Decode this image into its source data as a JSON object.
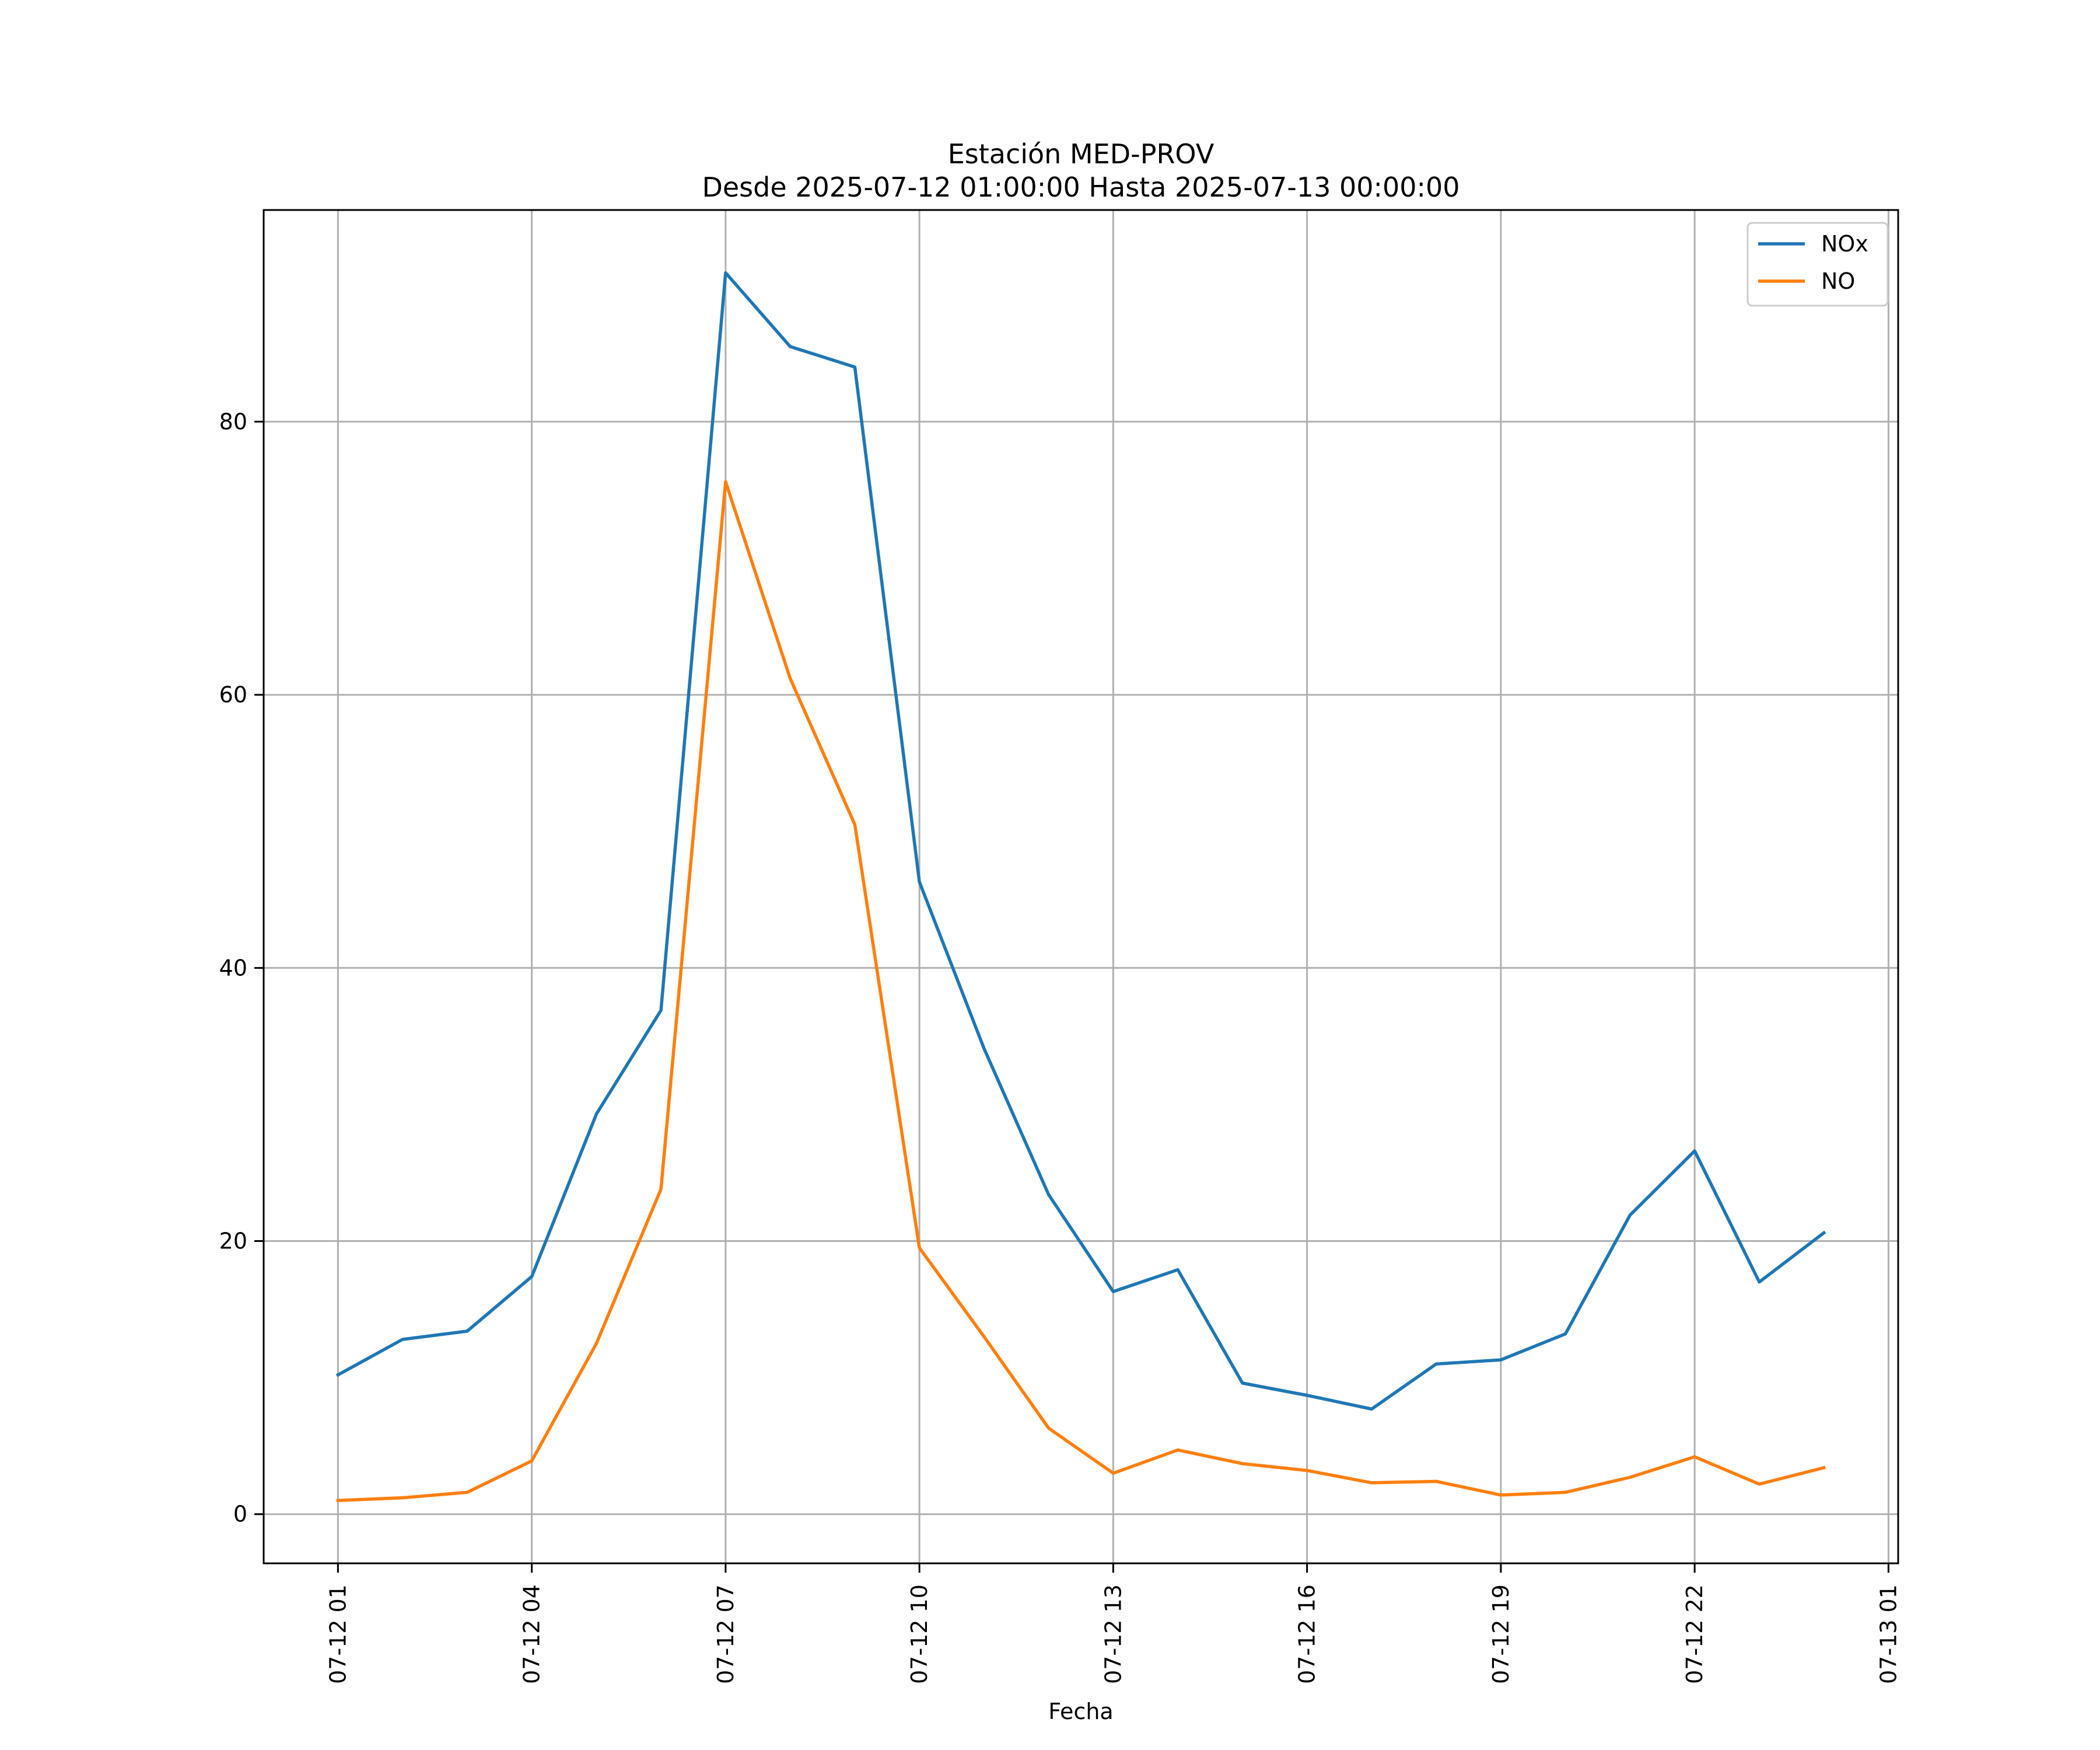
{
  "chart_data": {
    "type": "line",
    "title_line1": "Estación MED-PROV",
    "title_line2": "Desde 2025-07-12 01:00:00 Hasta 2025-07-13 00:00:00",
    "xlabel": "Fecha",
    "ylabel": "",
    "x": [
      "2025-07-12 01:00",
      "2025-07-12 02:00",
      "2025-07-12 03:00",
      "2025-07-12 04:00",
      "2025-07-12 05:00",
      "2025-07-12 06:00",
      "2025-07-12 07:00",
      "2025-07-12 08:00",
      "2025-07-12 09:00",
      "2025-07-12 10:00",
      "2025-07-12 11:00",
      "2025-07-12 12:00",
      "2025-07-12 13:00",
      "2025-07-12 14:00",
      "2025-07-12 15:00",
      "2025-07-12 16:00",
      "2025-07-12 17:00",
      "2025-07-12 18:00",
      "2025-07-12 19:00",
      "2025-07-12 20:00",
      "2025-07-12 21:00",
      "2025-07-12 22:00",
      "2025-07-12 23:00",
      "2025-07-13 00:00"
    ],
    "xlim": [
      "2025-07-11 23:51",
      "2025-07-13 01:09"
    ],
    "ylim": [
      -3.6,
      95.5
    ],
    "x_ticks": [
      {
        "value": "2025-07-12 01:00",
        "label": "07-12 01"
      },
      {
        "value": "2025-07-12 04:00",
        "label": "07-12 04"
      },
      {
        "value": "2025-07-12 07:00",
        "label": "07-12 07"
      },
      {
        "value": "2025-07-12 10:00",
        "label": "07-12 10"
      },
      {
        "value": "2025-07-12 13:00",
        "label": "07-12 13"
      },
      {
        "value": "2025-07-12 16:00",
        "label": "07-12 16"
      },
      {
        "value": "2025-07-12 19:00",
        "label": "07-12 19"
      },
      {
        "value": "2025-07-12 22:00",
        "label": "07-12 22"
      },
      {
        "value": "2025-07-13 01:00",
        "label": "07-13 01"
      }
    ],
    "y_ticks": [
      {
        "value": 0,
        "label": "0"
      },
      {
        "value": 20,
        "label": "20"
      },
      {
        "value": 40,
        "label": "40"
      },
      {
        "value": 60,
        "label": "60"
      },
      {
        "value": 80,
        "label": "80"
      }
    ],
    "grid": true,
    "legend_position": "top-right",
    "series": [
      {
        "name": "NOx",
        "color": "#1f77b4",
        "values": [
          10.2,
          12.8,
          13.4,
          17.4,
          29.3,
          36.9,
          90.9,
          85.5,
          84.0,
          46.3,
          34.1,
          23.4,
          16.3,
          17.9,
          9.6,
          8.7,
          7.7,
          11.0,
          11.3,
          13.2,
          21.9,
          26.6,
          17.0,
          20.6
        ]
      },
      {
        "name": "NO",
        "color": "#ff7f0e",
        "values": [
          1.0,
          1.2,
          1.6,
          3.9,
          12.5,
          23.8,
          75.6,
          61.2,
          50.5,
          19.5,
          13.0,
          6.3,
          3.0,
          4.7,
          3.7,
          3.2,
          2.3,
          2.4,
          1.4,
          1.6,
          2.7,
          4.2,
          2.2,
          3.4
        ]
      }
    ]
  }
}
